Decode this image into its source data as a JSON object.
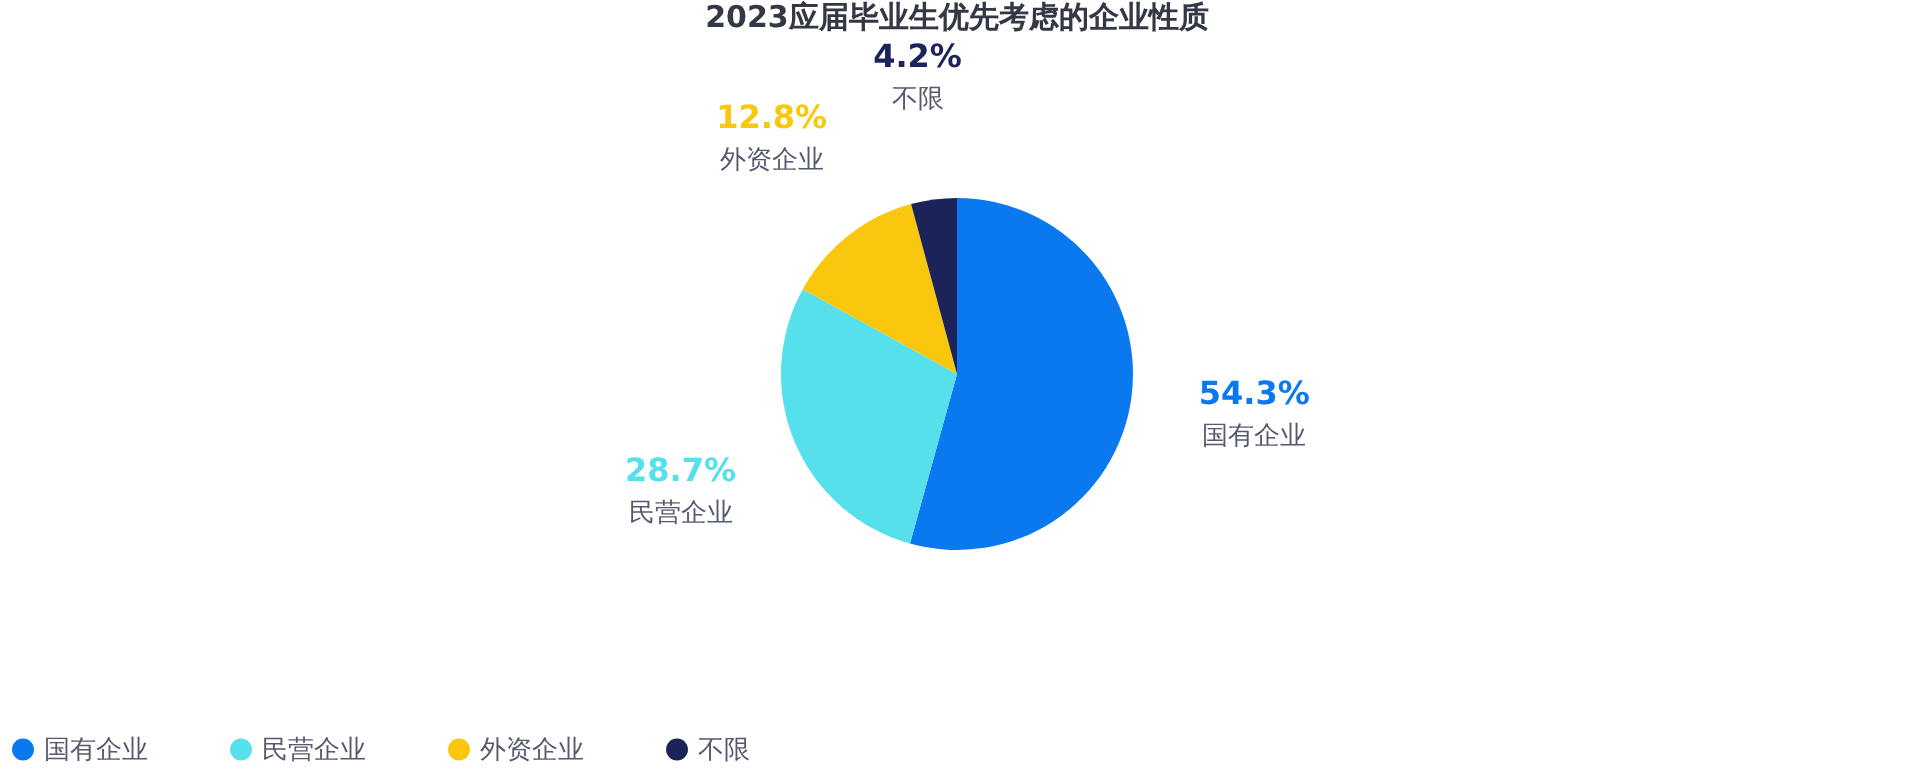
{
  "chart_data": {
    "type": "pie",
    "title": "2023应届毕业生优先考虑的企业性质",
    "categories": [
      "国有企业",
      "民营企业",
      "外资企业",
      "不限"
    ],
    "values": [
      54.3,
      28.7,
      12.8,
      4.2
    ],
    "value_labels": [
      "54.3%",
      "28.7%",
      "12.8%",
      "4.2%"
    ],
    "colors": [
      "#0a78ee",
      "#55e0ec",
      "#f9c80e",
      "#1c2358"
    ],
    "legend": "bottom"
  }
}
